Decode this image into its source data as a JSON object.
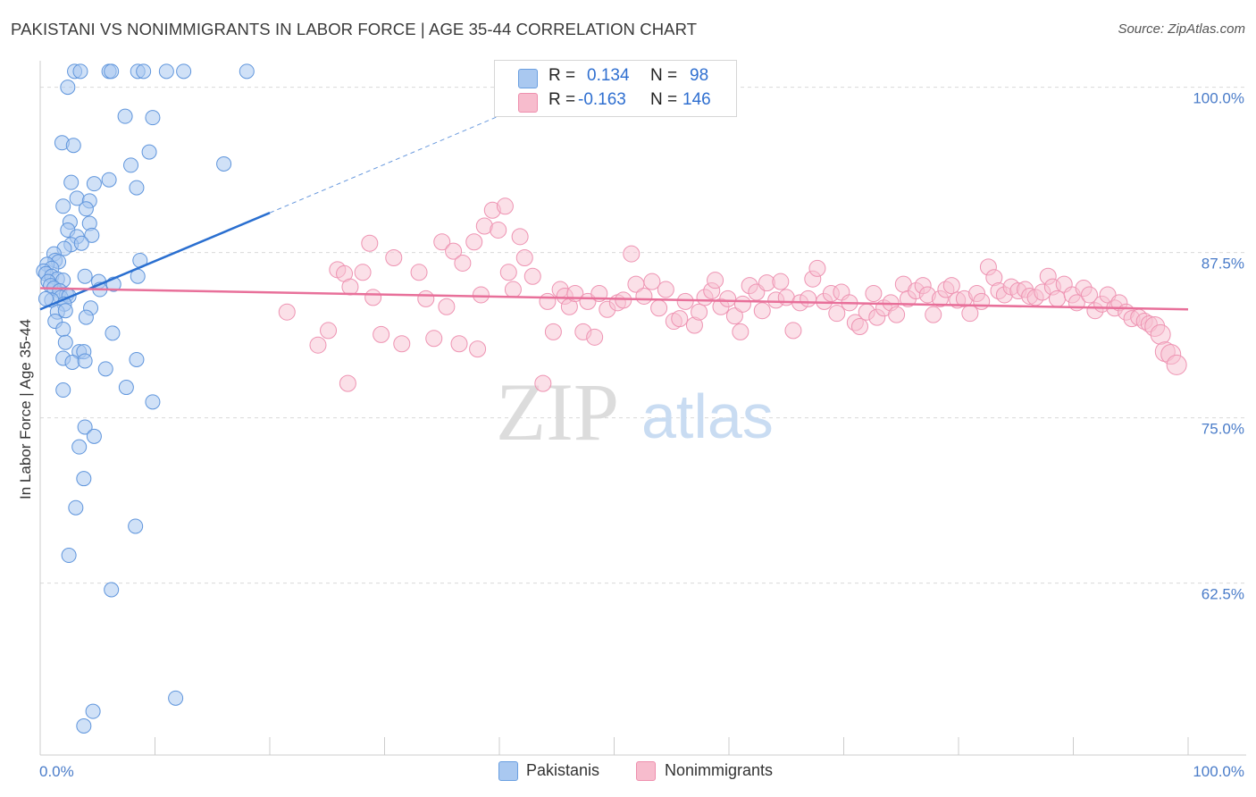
{
  "title": "PAKISTANI VS NONIMMIGRANTS IN LABOR FORCE | AGE 35-44 CORRELATION CHART",
  "source": "Source: ZipAtlas.com",
  "watermark": {
    "zip": "ZIP",
    "atlas": "atlas"
  },
  "legend": {
    "r_label": "R =",
    "n_label": "N =",
    "series": [
      {
        "name": "Pakistanis",
        "r": "0.134",
        "n": "98",
        "fill": "#a9c8f0",
        "stroke": "#6a9fe0"
      },
      {
        "name": "Nonimmigrants",
        "r": "-0.163",
        "n": "146",
        "fill": "#f7bccd",
        "stroke": "#ee8fae"
      }
    ]
  },
  "chart_data": {
    "type": "scatter",
    "ylabel": "In Labor Force | Age 35-44",
    "xlabel": "",
    "xlim": [
      0,
      100
    ],
    "ylim": [
      49.5,
      102
    ],
    "x_tick_labels": [
      "0.0%",
      "100.0%"
    ],
    "y_ticks": [
      100,
      87.5,
      75,
      62.5
    ],
    "y_tick_labels": [
      "100.0%",
      "87.5%",
      "75.0%",
      "62.5%"
    ],
    "colors": {
      "pak_fill": "#a9c8f0",
      "pak_stroke": "#5f95dc",
      "pak_line": "#2a6fd0",
      "non_fill": "#f7c2d2",
      "non_stroke": "#ee93b2",
      "non_line": "#e8709a",
      "grid": "#d9d9d9",
      "axis": "#cccccc"
    },
    "series": [
      {
        "name": "Pakistanis",
        "trend": {
          "x0": 0,
          "y0": 83.2,
          "x1": 20,
          "y1": 90.5,
          "dash_to_x": 41,
          "dash_to_y": 98.2
        },
        "points": [
          [
            3,
            101.2
          ],
          [
            3.5,
            101.2
          ],
          [
            6,
            101.2
          ],
          [
            6.2,
            101.2
          ],
          [
            8.5,
            101.2
          ],
          [
            9,
            101.2
          ],
          [
            11,
            101.2
          ],
          [
            12.5,
            101.2
          ],
          [
            18,
            101.2
          ],
          [
            2.4,
            100.0
          ],
          [
            7.4,
            97.8
          ],
          [
            9.8,
            97.7
          ],
          [
            1.9,
            95.8
          ],
          [
            2.9,
            95.6
          ],
          [
            9.5,
            95.1
          ],
          [
            7.9,
            94.1
          ],
          [
            16,
            94.2
          ],
          [
            6,
            93.0
          ],
          [
            2.7,
            92.8
          ],
          [
            4.7,
            92.7
          ],
          [
            8.4,
            92.4
          ],
          [
            3.2,
            91.6
          ],
          [
            4.3,
            91.4
          ],
          [
            2.0,
            91.0
          ],
          [
            4.0,
            90.8
          ],
          [
            2.6,
            89.8
          ],
          [
            2.4,
            89.2
          ],
          [
            4.3,
            89.7
          ],
          [
            4.5,
            88.8
          ],
          [
            3.2,
            88.7
          ],
          [
            2.7,
            88.1
          ],
          [
            2.1,
            87.8
          ],
          [
            3.6,
            88.2
          ],
          [
            8.7,
            86.9
          ],
          [
            1.2,
            87.4
          ],
          [
            1.3,
            86.9
          ],
          [
            1.6,
            86.8
          ],
          [
            0.6,
            86.6
          ],
          [
            1.0,
            86.3
          ],
          [
            0.3,
            86.1
          ],
          [
            0.5,
            85.9
          ],
          [
            1.0,
            85.7
          ],
          [
            1.5,
            85.5
          ],
          [
            2.0,
            85.4
          ],
          [
            3.9,
            85.7
          ],
          [
            8.5,
            85.7
          ],
          [
            0.7,
            85.3
          ],
          [
            0.9,
            85.0
          ],
          [
            1.2,
            84.8
          ],
          [
            1.7,
            84.6
          ],
          [
            5.1,
            85.3
          ],
          [
            6.4,
            85.1
          ],
          [
            2.3,
            84.3
          ],
          [
            1.8,
            84.1
          ],
          [
            2.5,
            84.2
          ],
          [
            5.2,
            84.7
          ],
          [
            1.0,
            83.9
          ],
          [
            2.1,
            83.6
          ],
          [
            0.5,
            84.0
          ],
          [
            1.5,
            83.0
          ],
          [
            4.4,
            83.3
          ],
          [
            2.2,
            83.1
          ],
          [
            1.3,
            82.3
          ],
          [
            4.0,
            82.6
          ],
          [
            2.0,
            81.7
          ],
          [
            6.3,
            81.4
          ],
          [
            2.2,
            80.7
          ],
          [
            3.4,
            80.0
          ],
          [
            3.8,
            80.0
          ],
          [
            2.0,
            79.5
          ],
          [
            2.8,
            79.2
          ],
          [
            3.9,
            79.3
          ],
          [
            8.4,
            79.4
          ],
          [
            5.7,
            78.7
          ],
          [
            7.5,
            77.3
          ],
          [
            2.0,
            77.1
          ],
          [
            9.8,
            76.2
          ],
          [
            3.9,
            74.3
          ],
          [
            4.7,
            73.6
          ],
          [
            3.4,
            72.8
          ],
          [
            3.8,
            70.4
          ],
          [
            3.1,
            68.2
          ],
          [
            8.3,
            66.8
          ],
          [
            2.5,
            64.6
          ],
          [
            6.2,
            62.0
          ],
          [
            11.8,
            53.8
          ],
          [
            4.6,
            52.8
          ],
          [
            3.8,
            51.7
          ]
        ]
      },
      {
        "name": "Nonimmigrants",
        "trend": {
          "x0": 0,
          "y0": 84.8,
          "x1": 100,
          "y1": 83.2
        },
        "points": [
          [
            21.5,
            83.0
          ],
          [
            24.2,
            80.5
          ],
          [
            25.1,
            81.6
          ],
          [
            25.9,
            86.2
          ],
          [
            26.5,
            85.9
          ],
          [
            26.8,
            77.6
          ],
          [
            27.0,
            84.9
          ],
          [
            28.1,
            86.0
          ],
          [
            28.7,
            88.2
          ],
          [
            29.0,
            84.1
          ],
          [
            29.7,
            81.3
          ],
          [
            30.8,
            87.1
          ],
          [
            31.5,
            80.6
          ],
          [
            33.0,
            86.0
          ],
          [
            33.6,
            84.0
          ],
          [
            34.3,
            81.0
          ],
          [
            35.0,
            88.3
          ],
          [
            35.4,
            83.4
          ],
          [
            36.0,
            87.6
          ],
          [
            36.5,
            80.6
          ],
          [
            36.8,
            86.7
          ],
          [
            37.8,
            88.3
          ],
          [
            38.1,
            80.2
          ],
          [
            38.4,
            84.3
          ],
          [
            38.7,
            89.5
          ],
          [
            39.4,
            90.7
          ],
          [
            39.9,
            89.2
          ],
          [
            40.5,
            91.0
          ],
          [
            40.8,
            86.0
          ],
          [
            41.2,
            84.7
          ],
          [
            41.8,
            88.7
          ],
          [
            42.2,
            87.1
          ],
          [
            42.9,
            85.7
          ],
          [
            43.8,
            77.6
          ],
          [
            44.2,
            83.8
          ],
          [
            44.7,
            81.5
          ],
          [
            45.3,
            84.7
          ],
          [
            45.7,
            84.2
          ],
          [
            46.1,
            83.4
          ],
          [
            46.6,
            84.4
          ],
          [
            47.3,
            81.5
          ],
          [
            47.7,
            83.8
          ],
          [
            48.3,
            81.1
          ],
          [
            48.7,
            84.4
          ],
          [
            49.4,
            83.2
          ],
          [
            50.3,
            83.7
          ],
          [
            50.8,
            83.9
          ],
          [
            51.5,
            87.4
          ],
          [
            51.9,
            85.1
          ],
          [
            52.6,
            84.2
          ],
          [
            53.3,
            85.3
          ],
          [
            53.9,
            83.3
          ],
          [
            54.5,
            84.7
          ],
          [
            55.2,
            82.3
          ],
          [
            55.7,
            82.5
          ],
          [
            56.2,
            83.8
          ],
          [
            57.0,
            82.0
          ],
          [
            57.4,
            83.0
          ],
          [
            57.9,
            84.1
          ],
          [
            58.5,
            84.6
          ],
          [
            58.8,
            85.4
          ],
          [
            59.3,
            83.4
          ],
          [
            59.9,
            84.0
          ],
          [
            60.5,
            82.7
          ],
          [
            61.0,
            81.5
          ],
          [
            61.2,
            83.6
          ],
          [
            61.8,
            85.0
          ],
          [
            62.4,
            84.5
          ],
          [
            62.9,
            83.1
          ],
          [
            63.3,
            85.2
          ],
          [
            64.1,
            83.9
          ],
          [
            64.5,
            85.3
          ],
          [
            65.0,
            84.1
          ],
          [
            65.6,
            81.6
          ],
          [
            66.2,
            83.7
          ],
          [
            66.9,
            84.0
          ],
          [
            67.3,
            85.5
          ],
          [
            67.7,
            86.3
          ],
          [
            68.3,
            83.8
          ],
          [
            68.9,
            84.4
          ],
          [
            69.4,
            82.9
          ],
          [
            69.8,
            84.5
          ],
          [
            70.5,
            83.7
          ],
          [
            71.0,
            82.2
          ],
          [
            71.4,
            81.9
          ],
          [
            72.0,
            83.0
          ],
          [
            72.6,
            84.4
          ],
          [
            72.9,
            82.6
          ],
          [
            73.5,
            83.3
          ],
          [
            74.1,
            83.7
          ],
          [
            74.6,
            82.8
          ],
          [
            75.2,
            85.1
          ],
          [
            75.6,
            84.0
          ],
          [
            76.3,
            84.6
          ],
          [
            76.9,
            85.0
          ],
          [
            77.3,
            84.3
          ],
          [
            77.8,
            82.8
          ],
          [
            78.4,
            84.0
          ],
          [
            78.9,
            84.7
          ],
          [
            79.4,
            85.0
          ],
          [
            79.9,
            83.9
          ],
          [
            80.5,
            84.0
          ],
          [
            81.0,
            82.9
          ],
          [
            81.6,
            84.4
          ],
          [
            82.0,
            83.8
          ],
          [
            82.6,
            86.4
          ],
          [
            83.1,
            85.6
          ],
          [
            83.5,
            84.6
          ],
          [
            84.0,
            84.3
          ],
          [
            84.6,
            84.9
          ],
          [
            85.2,
            84.6
          ],
          [
            85.8,
            84.7
          ],
          [
            86.2,
            84.2
          ],
          [
            86.7,
            84.1
          ],
          [
            87.3,
            84.5
          ],
          [
            87.8,
            85.7
          ],
          [
            88.2,
            84.9
          ],
          [
            88.6,
            84.0
          ],
          [
            89.2,
            85.1
          ],
          [
            89.9,
            84.3
          ],
          [
            90.3,
            83.7
          ],
          [
            90.9,
            84.8
          ],
          [
            91.4,
            84.3
          ],
          [
            91.9,
            83.1
          ],
          [
            92.5,
            83.6
          ],
          [
            93.0,
            84.3
          ],
          [
            93.6,
            83.3
          ],
          [
            94.0,
            83.7
          ],
          [
            94.6,
            83.0
          ],
          [
            95.1,
            82.5
          ],
          [
            95.7,
            82.6
          ],
          [
            96.2,
            82.3
          ],
          [
            96.6,
            82.1
          ],
          [
            97.1,
            81.9
          ],
          [
            97.6,
            81.3
          ],
          [
            98.0,
            80.0
          ],
          [
            98.5,
            79.8
          ],
          [
            99.0,
            79.0
          ]
        ]
      }
    ]
  }
}
